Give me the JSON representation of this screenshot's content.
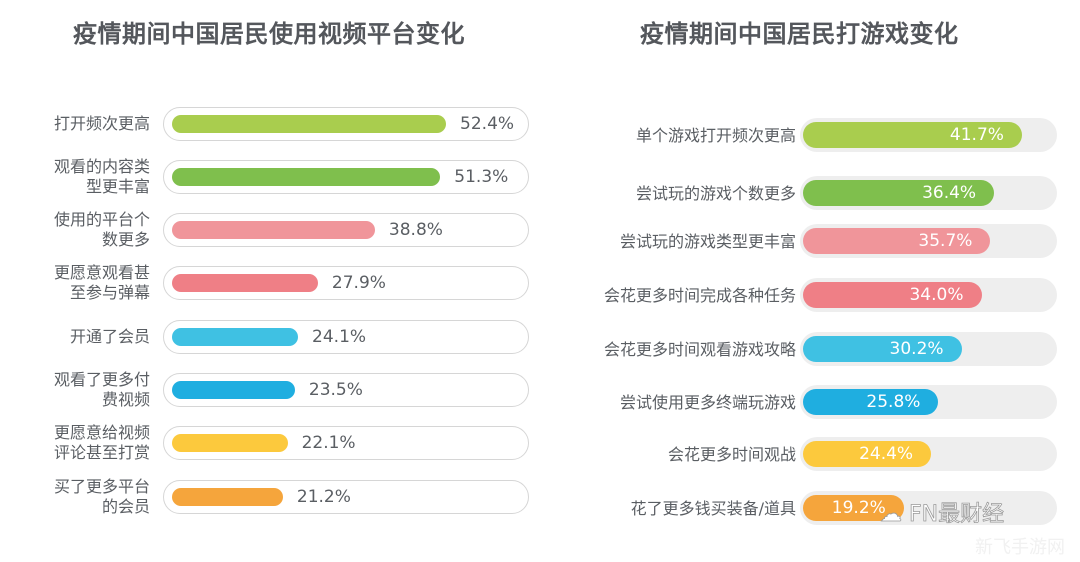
{
  "chart_data": [
    {
      "type": "bar",
      "orientation": "horizontal",
      "title": "疫情期间中国居民使用视频平台变化",
      "categories": [
        "打开频次更高",
        "观看的内容类型更丰富",
        "使用的平台个数更多",
        "更愿意观看甚至参与弹幕",
        "开通了会员",
        "观看了更多付费视频",
        "更愿意给视频评论甚至打赏",
        "买了更多平台的会员"
      ],
      "values": [
        52.4,
        51.3,
        38.8,
        27.9,
        24.1,
        23.5,
        22.1,
        21.2
      ],
      "value_labels": [
        "52.4%",
        "51.3%",
        "38.8%",
        "27.9%",
        "24.1%",
        "23.5%",
        "22.1%",
        "21.2%"
      ],
      "colors": [
        "#a9cd4e",
        "#7fbf4d",
        "#f0959a",
        "#ef7f86",
        "#3fc1e3",
        "#1faee0",
        "#fcc93d",
        "#f5a53c"
      ],
      "label_lines": [
        [
          "打开频次更高"
        ],
        [
          "观看的内容类",
          "型更丰富"
        ],
        [
          "使用的平台个",
          "数更多"
        ],
        [
          "更愿意观看甚",
          "至参与弹幕"
        ],
        [
          "开通了会员"
        ],
        [
          "观看了更多付",
          "费视频"
        ],
        [
          "更愿意给视频",
          "评论甚至打赏"
        ],
        [
          "买了更多平台",
          "的会员"
        ]
      ],
      "xlabel": "",
      "ylabel": "",
      "unit": "%",
      "grid": false,
      "legend": false
    },
    {
      "type": "bar",
      "orientation": "horizontal",
      "title": "疫情期间中国居民打游戏变化",
      "categories": [
        "单个游戏打开频次更高",
        "尝试玩的游戏个数更多",
        "尝试玩的游戏类型更丰富",
        "会花更多时间完成各种任务",
        "会花更多时间观看游戏攻略",
        "尝试使用更多终端玩游戏",
        "会花更多时间观战",
        "花了更多钱买装备/道具"
      ],
      "values": [
        41.7,
        36.4,
        35.7,
        34.0,
        30.2,
        25.8,
        24.4,
        19.2
      ],
      "value_labels": [
        "41.7%",
        "36.4%",
        "35.7%",
        "34.0%",
        "30.2%",
        "25.8%",
        "24.4%",
        "19.2%"
      ],
      "colors": [
        "#a9cd4e",
        "#7fbf4d",
        "#f0959a",
        "#ef7f86",
        "#3fc1e3",
        "#1faee0",
        "#fcc93d",
        "#f5a53c"
      ],
      "xlabel": "",
      "ylabel": "",
      "unit": "%",
      "grid": false,
      "legend": false
    }
  ],
  "watermark": {
    "main": "FN最财经",
    "sub": "新飞手游网"
  }
}
